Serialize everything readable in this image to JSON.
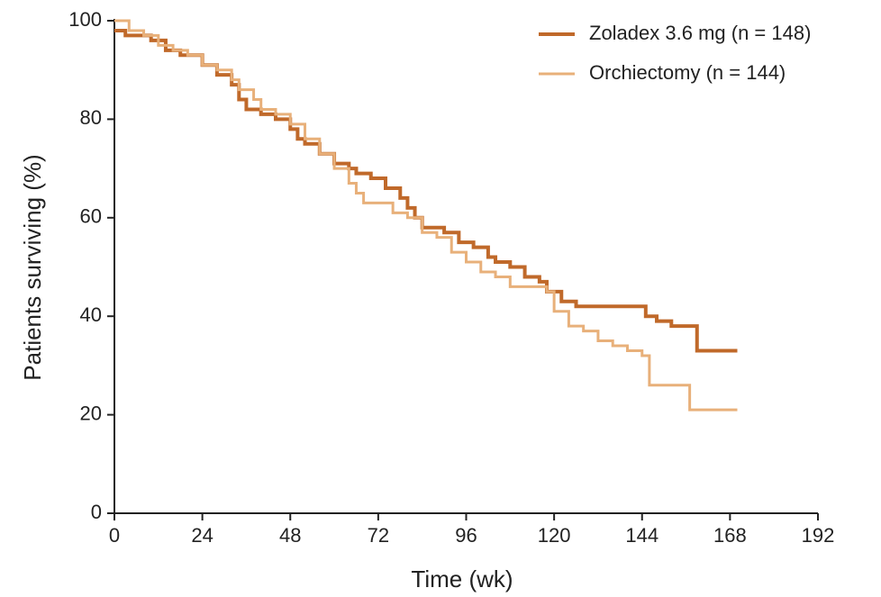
{
  "chart_data": {
    "type": "line",
    "step": "post",
    "xlabel": "Time (wk)",
    "ylabel": "Patients surviving (%)",
    "xlim": [
      0,
      192
    ],
    "xticks": [
      0,
      24,
      48,
      72,
      96,
      120,
      144,
      168,
      192
    ],
    "ylim": [
      0,
      100
    ],
    "yticks": [
      0,
      20,
      40,
      60,
      80,
      100
    ],
    "legend": "top-right",
    "series": [
      {
        "name": "Zoladex 3.6 mg (n = 148)",
        "color": "#c0692a",
        "width": 4,
        "x": [
          0,
          3,
          10,
          14,
          18,
          24,
          28,
          32,
          34,
          36,
          40,
          44,
          48,
          50,
          52,
          56,
          60,
          64,
          66,
          70,
          74,
          78,
          80,
          82,
          84,
          90,
          94,
          98,
          102,
          104,
          108,
          112,
          116,
          118,
          122,
          126,
          144,
          145,
          148,
          152,
          159,
          170
        ],
        "values": [
          98,
          97,
          96,
          94,
          93,
          91,
          89,
          87,
          84,
          82,
          81,
          80,
          78,
          76,
          75,
          73,
          71,
          70,
          69,
          68,
          66,
          64,
          62,
          60,
          58,
          57,
          55,
          54,
          52,
          51,
          50,
          48,
          47,
          45,
          43,
          42,
          42,
          40,
          39,
          38,
          33,
          33
        ]
      },
      {
        "name": "Orchiectomy (n = 144)",
        "color": "#e8b07a",
        "width": 3,
        "x": [
          0,
          4,
          8,
          12,
          16,
          20,
          24,
          28,
          32,
          34,
          38,
          40,
          44,
          48,
          52,
          56,
          60,
          64,
          66,
          68,
          76,
          80,
          84,
          88,
          92,
          96,
          100,
          104,
          108,
          118,
          120,
          124,
          128,
          132,
          136,
          140,
          144,
          146,
          157,
          170
        ],
        "values": [
          100,
          98,
          97,
          95,
          94,
          93,
          91,
          90,
          88,
          86,
          84,
          82,
          81,
          79,
          76,
          73,
          70,
          67,
          65,
          63,
          61,
          60,
          57,
          56,
          53,
          51,
          49,
          48,
          46,
          45,
          41,
          38,
          37,
          35,
          34,
          33,
          32,
          26,
          21,
          21
        ]
      }
    ]
  }
}
